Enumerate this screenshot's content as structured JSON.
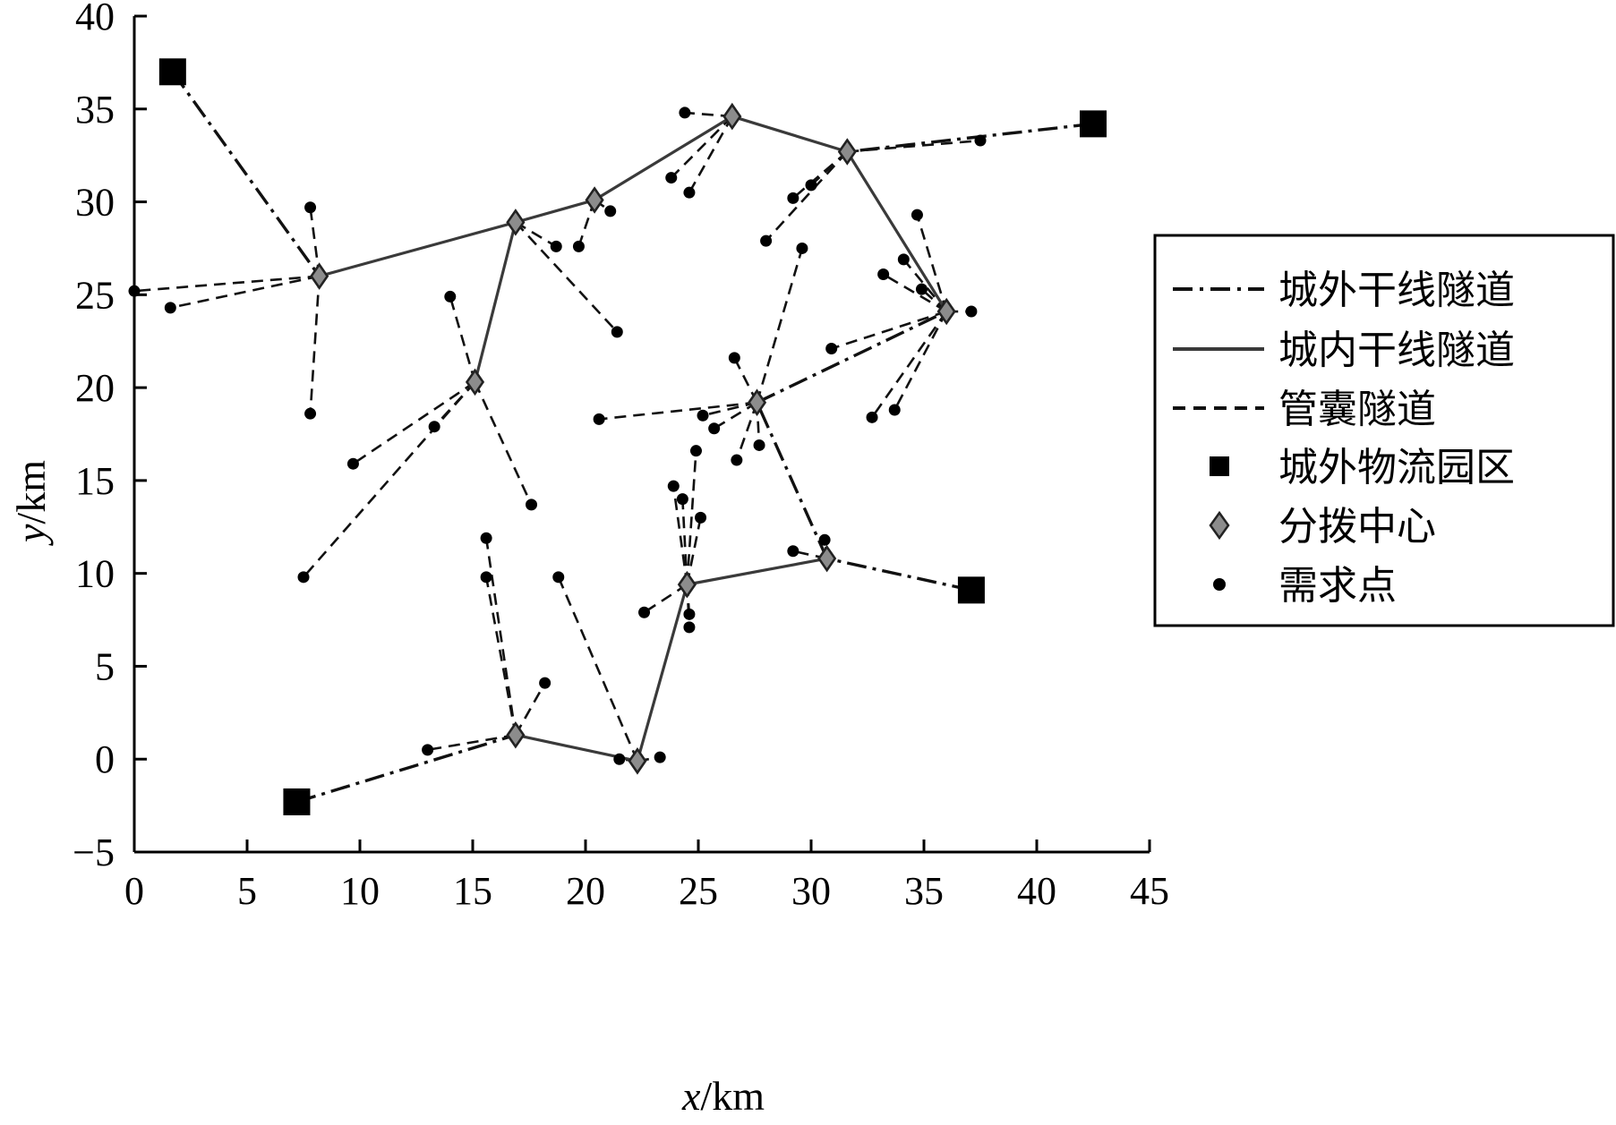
{
  "chart_data": {
    "type": "scatter",
    "xlabel_var": "x",
    "xlabel_unit": "/km",
    "ylabel_var": "y",
    "ylabel_unit": "/km",
    "xlim": [
      0,
      45
    ],
    "ylim": [
      -5,
      40
    ],
    "xticks": [
      0,
      5,
      10,
      15,
      20,
      25,
      30,
      35,
      40,
      45
    ],
    "yticks": [
      -5,
      0,
      5,
      10,
      15,
      20,
      25,
      30,
      35,
      40
    ],
    "xtick_labels": [
      "0",
      "5",
      "10",
      "15",
      "20",
      "25",
      "30",
      "35",
      "40",
      "45"
    ],
    "ytick_labels": [
      "−5",
      "0",
      "5",
      "10",
      "15",
      "20",
      "25",
      "30",
      "35",
      "40"
    ],
    "grid": false,
    "legend_position": "right",
    "legend": [
      {
        "key": "outer",
        "label": "城外干线隧道",
        "style": "dash-dot-line"
      },
      {
        "key": "inner",
        "label": "城内干线隧道",
        "style": "solid-line"
      },
      {
        "key": "capsule",
        "label": "管囊隧道",
        "style": "dashed-line"
      },
      {
        "key": "parks",
        "label": "城外物流园区",
        "style": "black-square"
      },
      {
        "key": "centers",
        "label": "分拨中心",
        "style": "gray-diamond"
      },
      {
        "key": "demand",
        "label": "需求点",
        "style": "black-dot"
      }
    ],
    "logistics_parks": [
      [
        1.7,
        37.0
      ],
      [
        7.2,
        -2.3
      ],
      [
        42.5,
        34.2
      ],
      [
        37.1,
        9.1
      ]
    ],
    "distribution_centers": [
      [
        8.2,
        26.0
      ],
      [
        16.9,
        28.9
      ],
      [
        20.4,
        30.1
      ],
      [
        26.5,
        34.6
      ],
      [
        31.6,
        32.7
      ],
      [
        36.0,
        24.1
      ],
      [
        27.6,
        19.2
      ],
      [
        15.1,
        20.3
      ],
      [
        30.7,
        10.8
      ],
      [
        24.5,
        9.4
      ],
      [
        16.9,
        1.3
      ],
      [
        22.3,
        -0.1
      ]
    ],
    "outer_trunk": [
      [
        [
          1.7,
          37.0
        ],
        [
          8.2,
          26.0
        ]
      ],
      [
        [
          7.2,
          -2.3
        ],
        [
          16.9,
          1.3
        ]
      ],
      [
        [
          42.5,
          34.2
        ],
        [
          31.6,
          32.7
        ]
      ],
      [
        [
          37.1,
          9.1
        ],
        [
          30.7,
          10.8
        ]
      ],
      [
        [
          30.7,
          10.8
        ],
        [
          27.6,
          19.2
        ]
      ],
      [
        [
          27.6,
          19.2
        ],
        [
          36.0,
          24.1
        ]
      ]
    ],
    "inner_trunk": [
      [
        [
          8.2,
          26.0
        ],
        [
          16.9,
          28.9
        ],
        [
          20.4,
          30.1
        ],
        [
          26.5,
          34.6
        ],
        [
          31.6,
          32.7
        ],
        [
          36.0,
          24.1
        ]
      ],
      [
        [
          16.9,
          28.9
        ],
        [
          15.1,
          20.3
        ]
      ],
      [
        [
          16.9,
          1.3
        ],
        [
          22.3,
          -0.1
        ],
        [
          24.5,
          9.4
        ],
        [
          30.7,
          10.8
        ]
      ]
    ],
    "demand_points": [
      [
        7.8,
        29.7
      ],
      [
        0.0,
        25.2
      ],
      [
        1.6,
        24.3
      ],
      [
        7.8,
        18.6
      ],
      [
        18.7,
        27.6
      ],
      [
        21.4,
        23.0
      ],
      [
        19.7,
        27.6
      ],
      [
        21.1,
        29.5
      ],
      [
        24.4,
        34.8
      ],
      [
        23.8,
        31.3
      ],
      [
        24.6,
        30.5
      ],
      [
        37.5,
        33.3
      ],
      [
        30.0,
        30.9
      ],
      [
        29.2,
        30.2
      ],
      [
        28.0,
        27.9
      ],
      [
        34.7,
        29.3
      ],
      [
        34.1,
        26.9
      ],
      [
        33.2,
        26.1
      ],
      [
        34.9,
        25.3
      ],
      [
        37.1,
        24.1
      ],
      [
        30.9,
        22.1
      ],
      [
        33.7,
        18.8
      ],
      [
        32.7,
        18.4
      ],
      [
        29.6,
        27.5
      ],
      [
        26.6,
        21.6
      ],
      [
        20.6,
        18.3
      ],
      [
        25.2,
        18.5
      ],
      [
        25.7,
        17.8
      ],
      [
        27.7,
        16.9
      ],
      [
        26.7,
        16.1
      ],
      [
        30.6,
        11.8
      ],
      [
        29.2,
        11.2
      ],
      [
        14.0,
        24.9
      ],
      [
        13.3,
        17.9
      ],
      [
        9.7,
        15.9
      ],
      [
        7.5,
        9.8
      ],
      [
        17.6,
        13.7
      ],
      [
        24.9,
        16.6
      ],
      [
        23.9,
        14.7
      ],
      [
        24.3,
        14.0
      ],
      [
        25.1,
        13.0
      ],
      [
        22.6,
        7.9
      ],
      [
        24.6,
        7.8
      ],
      [
        24.6,
        7.1
      ],
      [
        15.6,
        11.9
      ],
      [
        15.6,
        9.8
      ],
      [
        13.0,
        0.5
      ],
      [
        18.2,
        4.1
      ],
      [
        18.8,
        9.8
      ],
      [
        21.5,
        0.0
      ],
      [
        23.3,
        0.1
      ]
    ],
    "capsule_links": [
      [
        [
          8.2,
          26.0
        ],
        [
          7.8,
          29.7
        ]
      ],
      [
        [
          8.2,
          26.0
        ],
        [
          0.0,
          25.2
        ]
      ],
      [
        [
          8.2,
          26.0
        ],
        [
          1.6,
          24.3
        ]
      ],
      [
        [
          8.2,
          26.0
        ],
        [
          7.8,
          18.6
        ]
      ],
      [
        [
          16.9,
          28.9
        ],
        [
          18.7,
          27.6
        ]
      ],
      [
        [
          16.9,
          28.9
        ],
        [
          21.4,
          23.0
        ]
      ],
      [
        [
          20.4,
          30.1
        ],
        [
          19.7,
          27.6
        ]
      ],
      [
        [
          20.4,
          30.1
        ],
        [
          21.1,
          29.5
        ]
      ],
      [
        [
          26.5,
          34.6
        ],
        [
          24.4,
          34.8
        ]
      ],
      [
        [
          26.5,
          34.6
        ],
        [
          23.8,
          31.3
        ]
      ],
      [
        [
          26.5,
          34.6
        ],
        [
          24.6,
          30.5
        ]
      ],
      [
        [
          31.6,
          32.7
        ],
        [
          37.5,
          33.3
        ]
      ],
      [
        [
          31.6,
          32.7
        ],
        [
          30.0,
          30.9
        ]
      ],
      [
        [
          31.6,
          32.7
        ],
        [
          29.2,
          30.2
        ]
      ],
      [
        [
          31.6,
          32.7
        ],
        [
          28.0,
          27.9
        ]
      ],
      [
        [
          36.0,
          24.1
        ],
        [
          34.7,
          29.3
        ]
      ],
      [
        [
          36.0,
          24.1
        ],
        [
          34.1,
          26.9
        ]
      ],
      [
        [
          36.0,
          24.1
        ],
        [
          33.2,
          26.1
        ]
      ],
      [
        [
          36.0,
          24.1
        ],
        [
          34.9,
          25.3
        ]
      ],
      [
        [
          36.0,
          24.1
        ],
        [
          37.1,
          24.1
        ]
      ],
      [
        [
          36.0,
          24.1
        ],
        [
          30.9,
          22.1
        ]
      ],
      [
        [
          36.0,
          24.1
        ],
        [
          33.7,
          18.8
        ]
      ],
      [
        [
          36.0,
          24.1
        ],
        [
          32.7,
          18.4
        ]
      ],
      [
        [
          27.6,
          19.2
        ],
        [
          29.6,
          27.5
        ]
      ],
      [
        [
          27.6,
          19.2
        ],
        [
          26.6,
          21.6
        ]
      ],
      [
        [
          27.6,
          19.2
        ],
        [
          20.6,
          18.3
        ]
      ],
      [
        [
          27.6,
          19.2
        ],
        [
          25.2,
          18.5
        ]
      ],
      [
        [
          27.6,
          19.2
        ],
        [
          25.7,
          17.8
        ]
      ],
      [
        [
          27.6,
          19.2
        ],
        [
          27.7,
          16.9
        ]
      ],
      [
        [
          27.6,
          19.2
        ],
        [
          26.7,
          16.1
        ]
      ],
      [
        [
          30.7,
          10.8
        ],
        [
          30.6,
          11.8
        ]
      ],
      [
        [
          30.7,
          10.8
        ],
        [
          29.2,
          11.2
        ]
      ],
      [
        [
          15.1,
          20.3
        ],
        [
          14.0,
          24.9
        ]
      ],
      [
        [
          15.1,
          20.3
        ],
        [
          13.3,
          17.9
        ]
      ],
      [
        [
          15.1,
          20.3
        ],
        [
          9.7,
          15.9
        ]
      ],
      [
        [
          15.1,
          20.3
        ],
        [
          7.5,
          9.8
        ]
      ],
      [
        [
          15.1,
          20.3
        ],
        [
          17.6,
          13.7
        ]
      ],
      [
        [
          24.5,
          9.4
        ],
        [
          24.9,
          16.6
        ]
      ],
      [
        [
          24.5,
          9.4
        ],
        [
          23.9,
          14.7
        ]
      ],
      [
        [
          24.5,
          9.4
        ],
        [
          24.3,
          14.0
        ]
      ],
      [
        [
          24.5,
          9.4
        ],
        [
          25.1,
          13.0
        ]
      ],
      [
        [
          24.5,
          9.4
        ],
        [
          22.6,
          7.9
        ]
      ],
      [
        [
          24.5,
          9.4
        ],
        [
          24.6,
          7.8
        ]
      ],
      [
        [
          24.5,
          9.4
        ],
        [
          24.6,
          7.1
        ]
      ],
      [
        [
          16.9,
          1.3
        ],
        [
          15.6,
          11.9
        ]
      ],
      [
        [
          16.9,
          1.3
        ],
        [
          15.6,
          9.8
        ]
      ],
      [
        [
          16.9,
          1.3
        ],
        [
          13.0,
          0.5
        ]
      ],
      [
        [
          16.9,
          1.3
        ],
        [
          18.2,
          4.1
        ]
      ],
      [
        [
          22.3,
          -0.1
        ],
        [
          18.8,
          9.8
        ]
      ],
      [
        [
          22.3,
          -0.1
        ],
        [
          21.5,
          0.0
        ]
      ],
      [
        [
          22.3,
          -0.1
        ],
        [
          23.3,
          0.1
        ]
      ]
    ],
    "colors": {
      "outer_trunk": "#111111",
      "inner_trunk": "#3a3a3a",
      "capsule": "#111111",
      "parks": "#000000",
      "centers_fill": "#8c8c8c",
      "centers_stroke": "#222222",
      "demand": "#000000"
    }
  }
}
